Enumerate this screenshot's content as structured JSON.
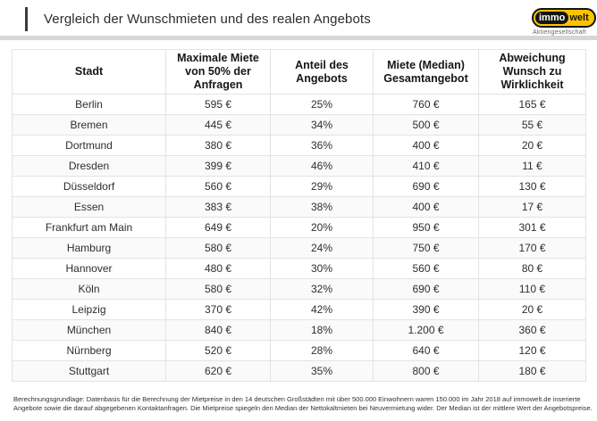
{
  "header": {
    "title": "Vergleich der Wunschmieten und des realen Angebots"
  },
  "logo": {
    "immo": "immo",
    "welt": "welt",
    "subtitle": "Aktiengesellschaft"
  },
  "chart_data": {
    "type": "table",
    "title": "Vergleich der Wunschmieten und des realen Angebots",
    "columns": [
      "Stadt",
      "Maximale Miete von 50% der Anfragen",
      "Anteil des Angebots",
      "Miete (Median) Gesamtangebot",
      "Abweichung Wunsch zu Wirklichkeit"
    ],
    "rows": [
      [
        "Berlin",
        "595 €",
        "25%",
        "760 €",
        "165 €"
      ],
      [
        "Bremen",
        "445 €",
        "34%",
        "500 €",
        "55 €"
      ],
      [
        "Dortmund",
        "380 €",
        "36%",
        "400 €",
        "20 €"
      ],
      [
        "Dresden",
        "399 €",
        "46%",
        "410 €",
        "11 €"
      ],
      [
        "Düsseldorf",
        "560 €",
        "29%",
        "690 €",
        "130 €"
      ],
      [
        "Essen",
        "383 €",
        "38%",
        "400 €",
        "17 €"
      ],
      [
        "Frankfurt am Main",
        "649 €",
        "20%",
        "950 €",
        "301 €"
      ],
      [
        "Hamburg",
        "580 €",
        "24%",
        "750 €",
        "170 €"
      ],
      [
        "Hannover",
        "480 €",
        "30%",
        "560 €",
        "80 €"
      ],
      [
        "Köln",
        "580 €",
        "32%",
        "690 €",
        "110 €"
      ],
      [
        "Leipzig",
        "370 €",
        "42%",
        "390 €",
        "20 €"
      ],
      [
        "München",
        "840 €",
        "18%",
        "1.200 €",
        "360 €"
      ],
      [
        "Nürnberg",
        "520 €",
        "28%",
        "640 €",
        "120 €"
      ],
      [
        "Stuttgart",
        "620 €",
        "35%",
        "800 €",
        "180 €"
      ]
    ]
  },
  "footnote": {
    "line1": "Berechnungsgrundlage: Datenbasis für die Berechnung der Mietpreise in den 14 deutschen Großstädten mit über 500.000 Einwohnern waren 150.000 im Jahr 2018 auf immowelt.de inserierte",
    "line2": "Angebote sowie die darauf abgegebenen Kontaktanfragen. Die Mietpreise spiegeln den Median der Nettokaltmieten bei Neuvermietung wider. Der Median ist der mittlere Wert der Angebotspreise."
  },
  "colors": {
    "brand_yellow": "#fdc300",
    "brand_black": "#141414",
    "divider_gray": "#d6d6d6"
  }
}
